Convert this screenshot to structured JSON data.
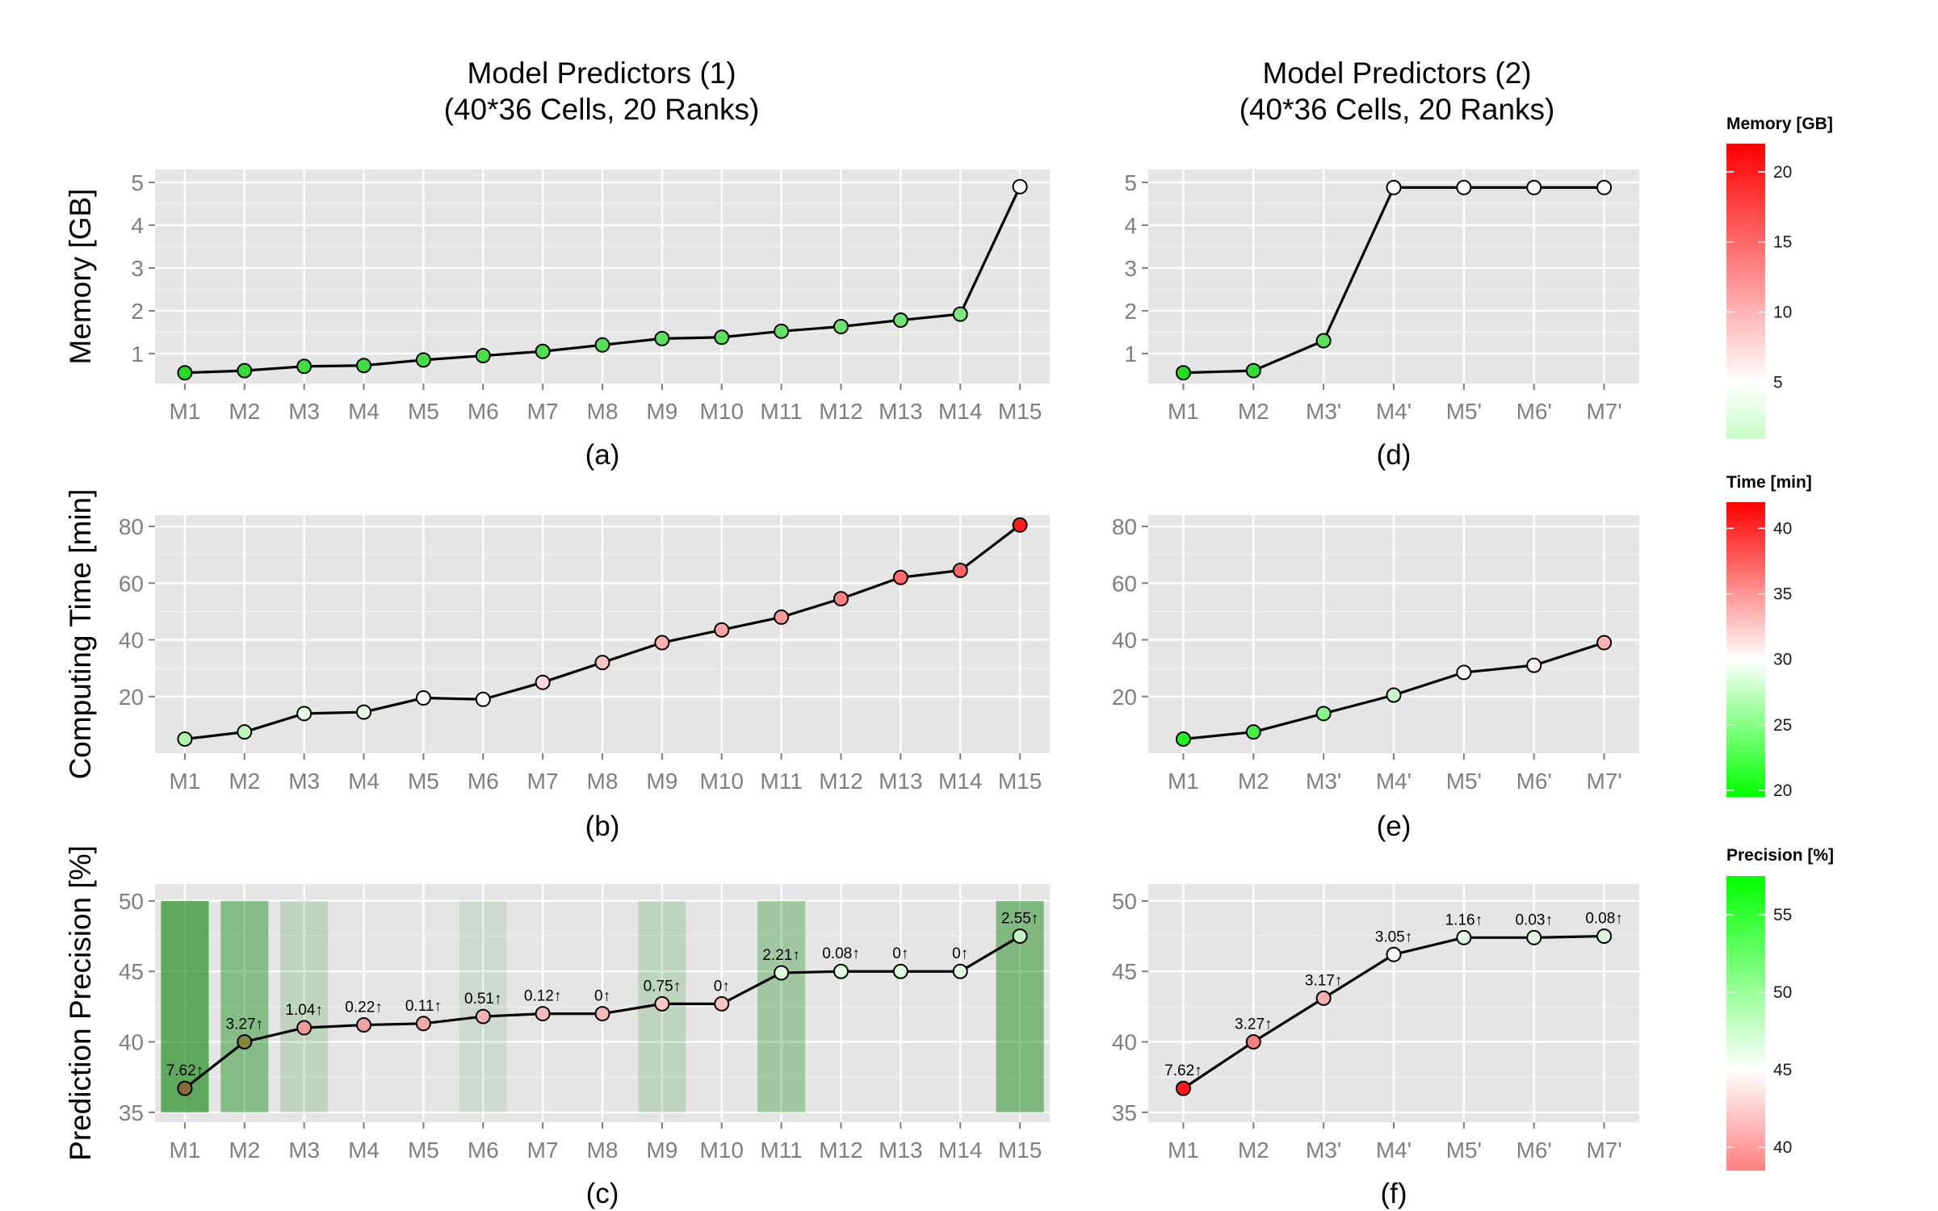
{
  "column_titles": [
    {
      "line1": "Model Predictors (1)",
      "line2": "(40*36 Cells, 20 Ranks)"
    },
    {
      "line1": "Model Predictors (2)",
      "line2": "(40*36 Cells, 20 Ranks)"
    }
  ],
  "chart_data": [
    {
      "id": "a",
      "type": "line",
      "panel_label": "(a)",
      "ylabel": "Memory [GB]",
      "categories": [
        "M1",
        "M2",
        "M3",
        "M4",
        "M5",
        "M6",
        "M7",
        "M8",
        "M9",
        "M10",
        "M11",
        "M12",
        "M13",
        "M14",
        "M15"
      ],
      "values": [
        0.55,
        0.6,
        0.7,
        0.72,
        0.85,
        0.95,
        1.05,
        1.2,
        1.35,
        1.38,
        1.52,
        1.63,
        1.78,
        1.92,
        4.9
      ],
      "color_scale": "memory",
      "yticks": [
        1,
        2,
        3,
        4,
        5
      ],
      "ylim": [
        0.3,
        5.3
      ],
      "grid": true
    },
    {
      "id": "b",
      "type": "line",
      "panel_label": "(b)",
      "ylabel": "Computing Time [min]",
      "categories": [
        "M1",
        "M2",
        "M3",
        "M4",
        "M5",
        "M6",
        "M7",
        "M8",
        "M9",
        "M10",
        "M11",
        "M12",
        "M13",
        "M14",
        "M15"
      ],
      "values": [
        5,
        7.5,
        14,
        14.5,
        19.5,
        19,
        25,
        32,
        39,
        43.5,
        48,
        54.5,
        62,
        64.5,
        80.5
      ],
      "color_scale": "time",
      "yticks": [
        20,
        40,
        60,
        80
      ],
      "ylim": [
        0,
        84
      ],
      "grid": true
    },
    {
      "id": "c",
      "type": "line",
      "panel_label": "(c)",
      "ylabel": "Prediction Precision [%]",
      "categories": [
        "M1",
        "M2",
        "M3",
        "M4",
        "M5",
        "M6",
        "M7",
        "M8",
        "M9",
        "M10",
        "M11",
        "M12",
        "M13",
        "M14",
        "M15"
      ],
      "values": [
        36.7,
        40,
        41,
        41.2,
        41.3,
        41.8,
        42,
        42,
        42.7,
        42.7,
        44.9,
        45,
        45,
        45,
        47.5
      ],
      "labels": [
        "7.62↑",
        "3.27↑",
        "1.04↑",
        "0.22↑",
        "0.11↑",
        "0.51↑",
        "0.12↑",
        "0↑",
        "0.75↑",
        "0↑",
        "2.21↑",
        "0.08↑",
        "0↑",
        "0↑",
        "2.55↑"
      ],
      "color_scale": "precision",
      "bars": [
        {
          "category": "M1",
          "opacity": 0.6
        },
        {
          "category": "M2",
          "opacity": 0.42
        },
        {
          "category": "M3",
          "opacity": 0.17
        },
        {
          "category": "M6",
          "opacity": 0.1
        },
        {
          "category": "M9",
          "opacity": 0.17
        },
        {
          "category": "M11",
          "opacity": 0.3
        },
        {
          "category": "M15",
          "opacity": 0.45
        }
      ],
      "bar_range": [
        35,
        50
      ],
      "yticks": [
        35,
        40,
        45,
        50
      ],
      "ylim": [
        34.3,
        51.2
      ],
      "grid": true
    },
    {
      "id": "d",
      "type": "line",
      "panel_label": "(d)",
      "ylabel": "",
      "categories": [
        "M1",
        "M2",
        "M3'",
        "M4'",
        "M5'",
        "M6'",
        "M7'"
      ],
      "values": [
        0.55,
        0.6,
        1.3,
        4.88,
        4.88,
        4.88,
        4.88
      ],
      "color_scale": "memory",
      "yticks": [
        1,
        2,
        3,
        4,
        5
      ],
      "ylim": [
        0.3,
        5.3
      ],
      "grid": true
    },
    {
      "id": "e",
      "type": "line",
      "panel_label": "(e)",
      "ylabel": "",
      "categories": [
        "M1",
        "M2",
        "M3'",
        "M4'",
        "M5'",
        "M6'",
        "M7'"
      ],
      "values": [
        5,
        7.5,
        14,
        20.5,
        28.5,
        31,
        39
      ],
      "color_scale": "time",
      "yticks": [
        20,
        40,
        60,
        80
      ],
      "ylim": [
        0,
        84
      ],
      "grid": true
    },
    {
      "id": "f",
      "type": "line",
      "panel_label": "(f)",
      "ylabel": "",
      "categories": [
        "M1",
        "M2",
        "M3'",
        "M4'",
        "M5'",
        "M6'",
        "M7'"
      ],
      "values": [
        36.7,
        40,
        43.1,
        46.2,
        47.4,
        47.4,
        47.5
      ],
      "labels": [
        "7.62↑",
        "3.27↑",
        "3.17↑",
        "3.05↑",
        "1.16↑",
        "0.03↑",
        "0.08↑"
      ],
      "color_scale": "precision",
      "yticks": [
        35,
        40,
        45,
        50
      ],
      "ylim": [
        34.3,
        51.2
      ],
      "grid": true
    }
  ],
  "legends": [
    {
      "key": "memory",
      "title": "Memory [GB]",
      "ticks": [
        20,
        15,
        10,
        5
      ],
      "range": [
        1,
        22
      ],
      "stops": [
        {
          "v": 1,
          "c": "#c8fcc8"
        },
        {
          "v": 5,
          "c": "#ffffff"
        },
        {
          "v": 22,
          "c": "#ff0000"
        }
      ]
    },
    {
      "key": "time",
      "title": "Time [min]",
      "ticks": [
        40,
        35,
        30,
        25,
        20
      ],
      "range": [
        19.5,
        42
      ],
      "stops": [
        {
          "v": 19.5,
          "c": "#00ff00"
        },
        {
          "v": 30,
          "c": "#ffffff"
        },
        {
          "v": 42,
          "c": "#ff0000"
        }
      ]
    },
    {
      "key": "precision",
      "title": "Precision [%]",
      "ticks": [
        55,
        50,
        45,
        40
      ],
      "range": [
        38.5,
        57.5
      ],
      "stops": [
        {
          "v": 38.5,
          "c": "#ff7f7f"
        },
        {
          "v": 45,
          "c": "#ffffff"
        },
        {
          "v": 57.5,
          "c": "#00ff00"
        }
      ]
    }
  ],
  "point_colors": {
    "a": [
      "#22dd22",
      "#33dd33",
      "#3ddd3d",
      "#3fdd3f",
      "#44de44",
      "#48de48",
      "#4fe04f",
      "#55e055",
      "#5be25b",
      "#5ee25e",
      "#66e466",
      "#6ce66c",
      "#72e672",
      "#7ae87a",
      "#ffffff"
    ],
    "b": [
      "#aaf5aa",
      "#bbf6bb",
      "#e4fbe4",
      "#e8fbe8",
      "#fffefe",
      "#fafffa",
      "#ffd8d8",
      "#ffc4c4",
      "#ffb0b0",
      "#ffa5a5",
      "#ff9898",
      "#ff8282",
      "#ff6b6b",
      "#ff6464",
      "#ff1e1e"
    ],
    "c": [
      "#8a6a3a",
      "#7f8a3a",
      "#f09a9a",
      "#f0a2a2",
      "#f3a8a8",
      "#f4b2b2",
      "#f7baba",
      "#f7baba",
      "#f9c4c4",
      "#f9c4c4",
      "#ddf8dd",
      "#e0f8e0",
      "#e0f8e0",
      "#e0f8e0",
      "#c2f4c2"
    ],
    "d": [
      "#22dd22",
      "#33dd33",
      "#5ee25e",
      "#ffffff",
      "#ffffff",
      "#ffffff",
      "#ffffff"
    ],
    "e": [
      "#22ee22",
      "#44ee44",
      "#88f388",
      "#cdf7cd",
      "#ffffff",
      "#fff2f2",
      "#ffb0b0"
    ],
    "f": [
      "#ff1a1a",
      "#f57f7f",
      "#f5adad",
      "#fafcfa",
      "#e0f8e0",
      "#e0f8e0",
      "#dcf8dc"
    ]
  }
}
